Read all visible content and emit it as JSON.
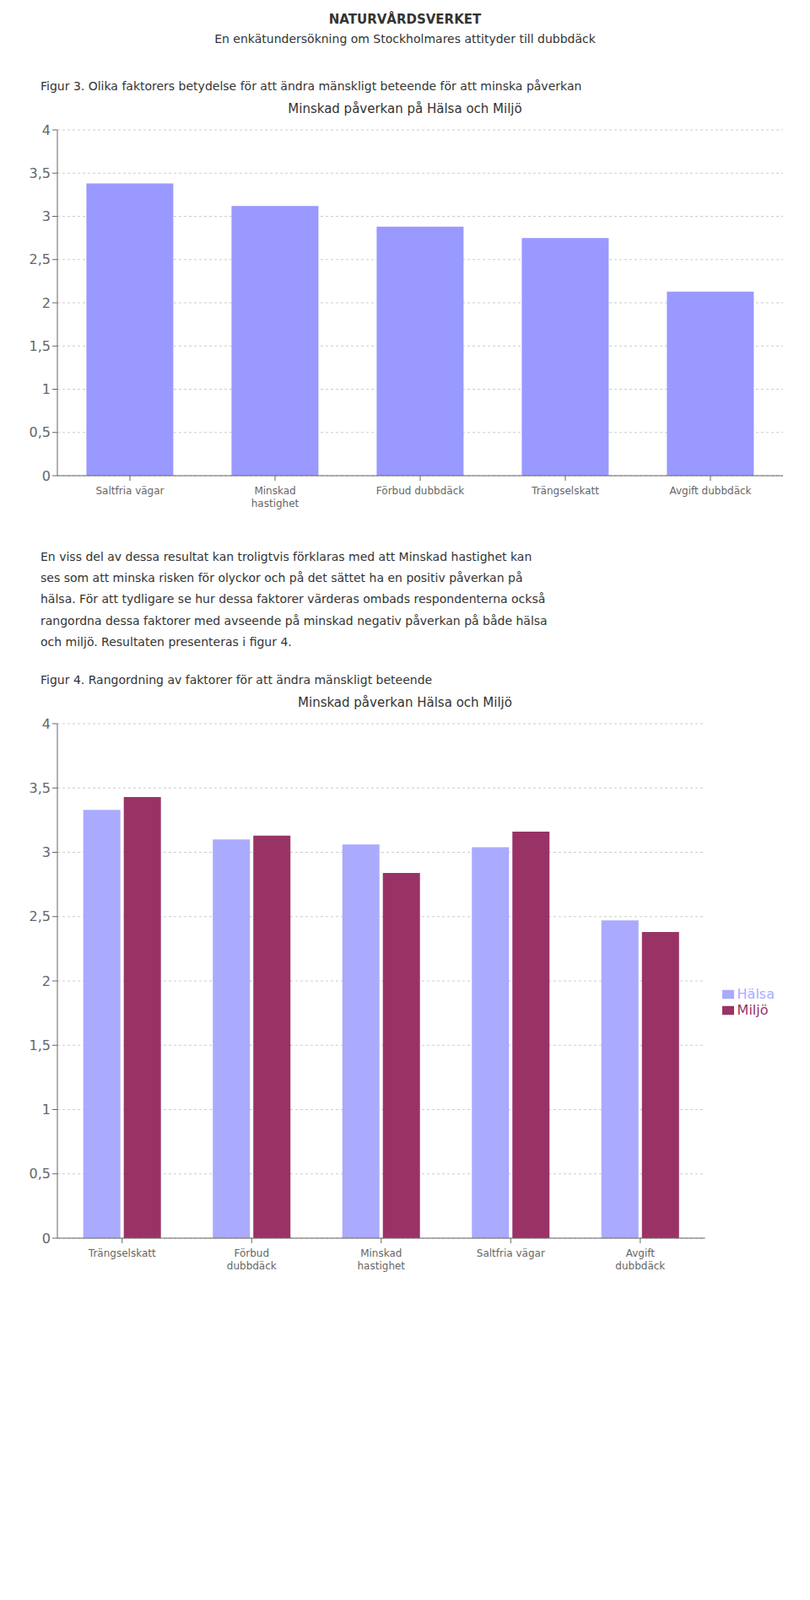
{
  "title": "NATURVÅRDSVERKET",
  "subtitle": "En enkätundersökning om Stockholmares attityder till dubbdäck",
  "annotations": [
    "En viss del av dessa resultat kan troligtvis förklaras med att Minskad hastighet kan\nses som att minska risken för olyckor och på det sättet ha en positiv påverkan på\nhälsa. För att tydligare se hur dessa faktorer värderas ombads respondenterna också\nrangordna dessa faktorer med avseende på minskad negativ påverkan på både hälsa\noch miljö. Resultaten presenteras i figur 4."
  ],
  "chart_data": [
    {
      "type": "bar",
      "subtitle": "Figur 3. Olika faktorers betydelse för att ändra mänskligt beteende för att minska påverkan",
      "title": "Minskad påverkan på Hälsa och Miljö",
      "categories": [
        "Saltfria vägar",
        "Minskad\nhastighet",
        "Förbud dubbdäck",
        "Trängselskatt",
        "Avgift dubbdäck"
      ],
      "values": [
        3.38,
        3.12,
        2.88,
        2.75,
        2.13
      ],
      "color": "#9999ff",
      "ylim": [
        0,
        4
      ],
      "yticks": [
        0,
        {
          "value": 0.5,
          "label": "0,5"
        },
        1,
        {
          "value": 1.5,
          "label": "1,5"
        },
        2,
        {
          "value": 2.5,
          "label": "2,5"
        },
        3,
        {
          "value": 3.5,
          "label": "3,5"
        },
        4
      ],
      "grid": true
    },
    {
      "type": "bar",
      "subtitle": "Figur 4. Rangordning av faktorer för att ändra mänskligt beteende",
      "title": "Minskad påverkan Hälsa och Miljö",
      "categories": [
        "Trängselskatt",
        "Förbud\ndubbdäck",
        "Minskad\nhastighet",
        "Saltfria vägar",
        "Avgift\ndubbdäck"
      ],
      "series": [
        {
          "name": "Hälsa",
          "color": "#aaaaff",
          "values": [
            3.33,
            3.1,
            3.06,
            3.04,
            2.47
          ]
        },
        {
          "name": "Miljö",
          "color": "#993366",
          "values": [
            3.43,
            3.13,
            2.84,
            3.16,
            2.38
          ]
        }
      ],
      "ylim": [
        0,
        4
      ],
      "yticks": [
        0,
        {
          "value": 0.5,
          "label": "0,5"
        },
        1,
        {
          "value": 1.5,
          "label": "1,5"
        },
        2,
        {
          "value": 2.5,
          "label": "2,5"
        },
        3,
        {
          "value": 3.5,
          "label": "3,5"
        },
        4
      ],
      "grid": true,
      "legend": "right"
    }
  ]
}
